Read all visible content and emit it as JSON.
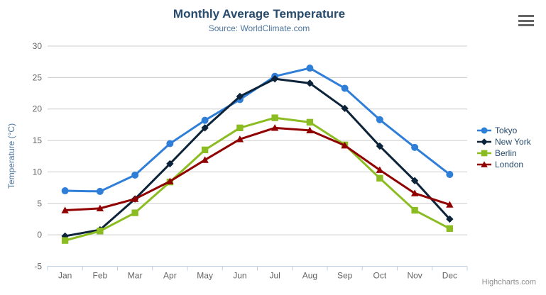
{
  "header": {
    "title": "Monthly Average Temperature",
    "subtitle": "Source: WorldClimate.com"
  },
  "credit": {
    "label": "Highcharts.com"
  },
  "menu": {
    "icon": "hamburger-icon"
  },
  "colors": {
    "title": "#274b6d",
    "subtitle": "#4d759e",
    "axis_title": "#4d759e",
    "axis_labels": "#666666",
    "grid": "#cccccc",
    "axis_line": "#c0d0e0",
    "legend_text": "#274b6d",
    "credit_text": "#909090"
  },
  "chart_data": {
    "type": "line",
    "title": "Monthly Average Temperature",
    "subtitle": "Source: WorldClimate.com",
    "xlabel": "",
    "ylabel": "Temperature (°C)",
    "ylim": [
      -5,
      30
    ],
    "ytick_interval": 5,
    "grid": true,
    "legend_position": "right-middle",
    "categories": [
      "Jan",
      "Feb",
      "Mar",
      "Apr",
      "May",
      "Jun",
      "Jul",
      "Aug",
      "Sep",
      "Oct",
      "Nov",
      "Dec"
    ],
    "series": [
      {
        "name": "Tokyo",
        "color": "#2f7ed8",
        "marker": "circle",
        "values": [
          7.0,
          6.9,
          9.5,
          14.5,
          18.2,
          21.5,
          25.2,
          26.5,
          23.3,
          18.3,
          13.9,
          9.6
        ]
      },
      {
        "name": "New York",
        "color": "#0d233a",
        "marker": "diamond",
        "values": [
          -0.2,
          0.8,
          5.7,
          11.3,
          17.0,
          22.0,
          24.8,
          24.1,
          20.1,
          14.1,
          8.6,
          2.5
        ]
      },
      {
        "name": "Berlin",
        "color": "#8bbc21",
        "marker": "square",
        "values": [
          -0.9,
          0.6,
          3.5,
          8.4,
          13.5,
          17.0,
          18.6,
          17.9,
          14.3,
          9.0,
          3.9,
          1.0
        ]
      },
      {
        "name": "London",
        "color": "#910000",
        "marker": "triangle",
        "values": [
          3.9,
          4.2,
          5.7,
          8.5,
          11.9,
          15.2,
          17.0,
          16.6,
          14.2,
          10.3,
          6.6,
          4.8
        ]
      }
    ]
  }
}
